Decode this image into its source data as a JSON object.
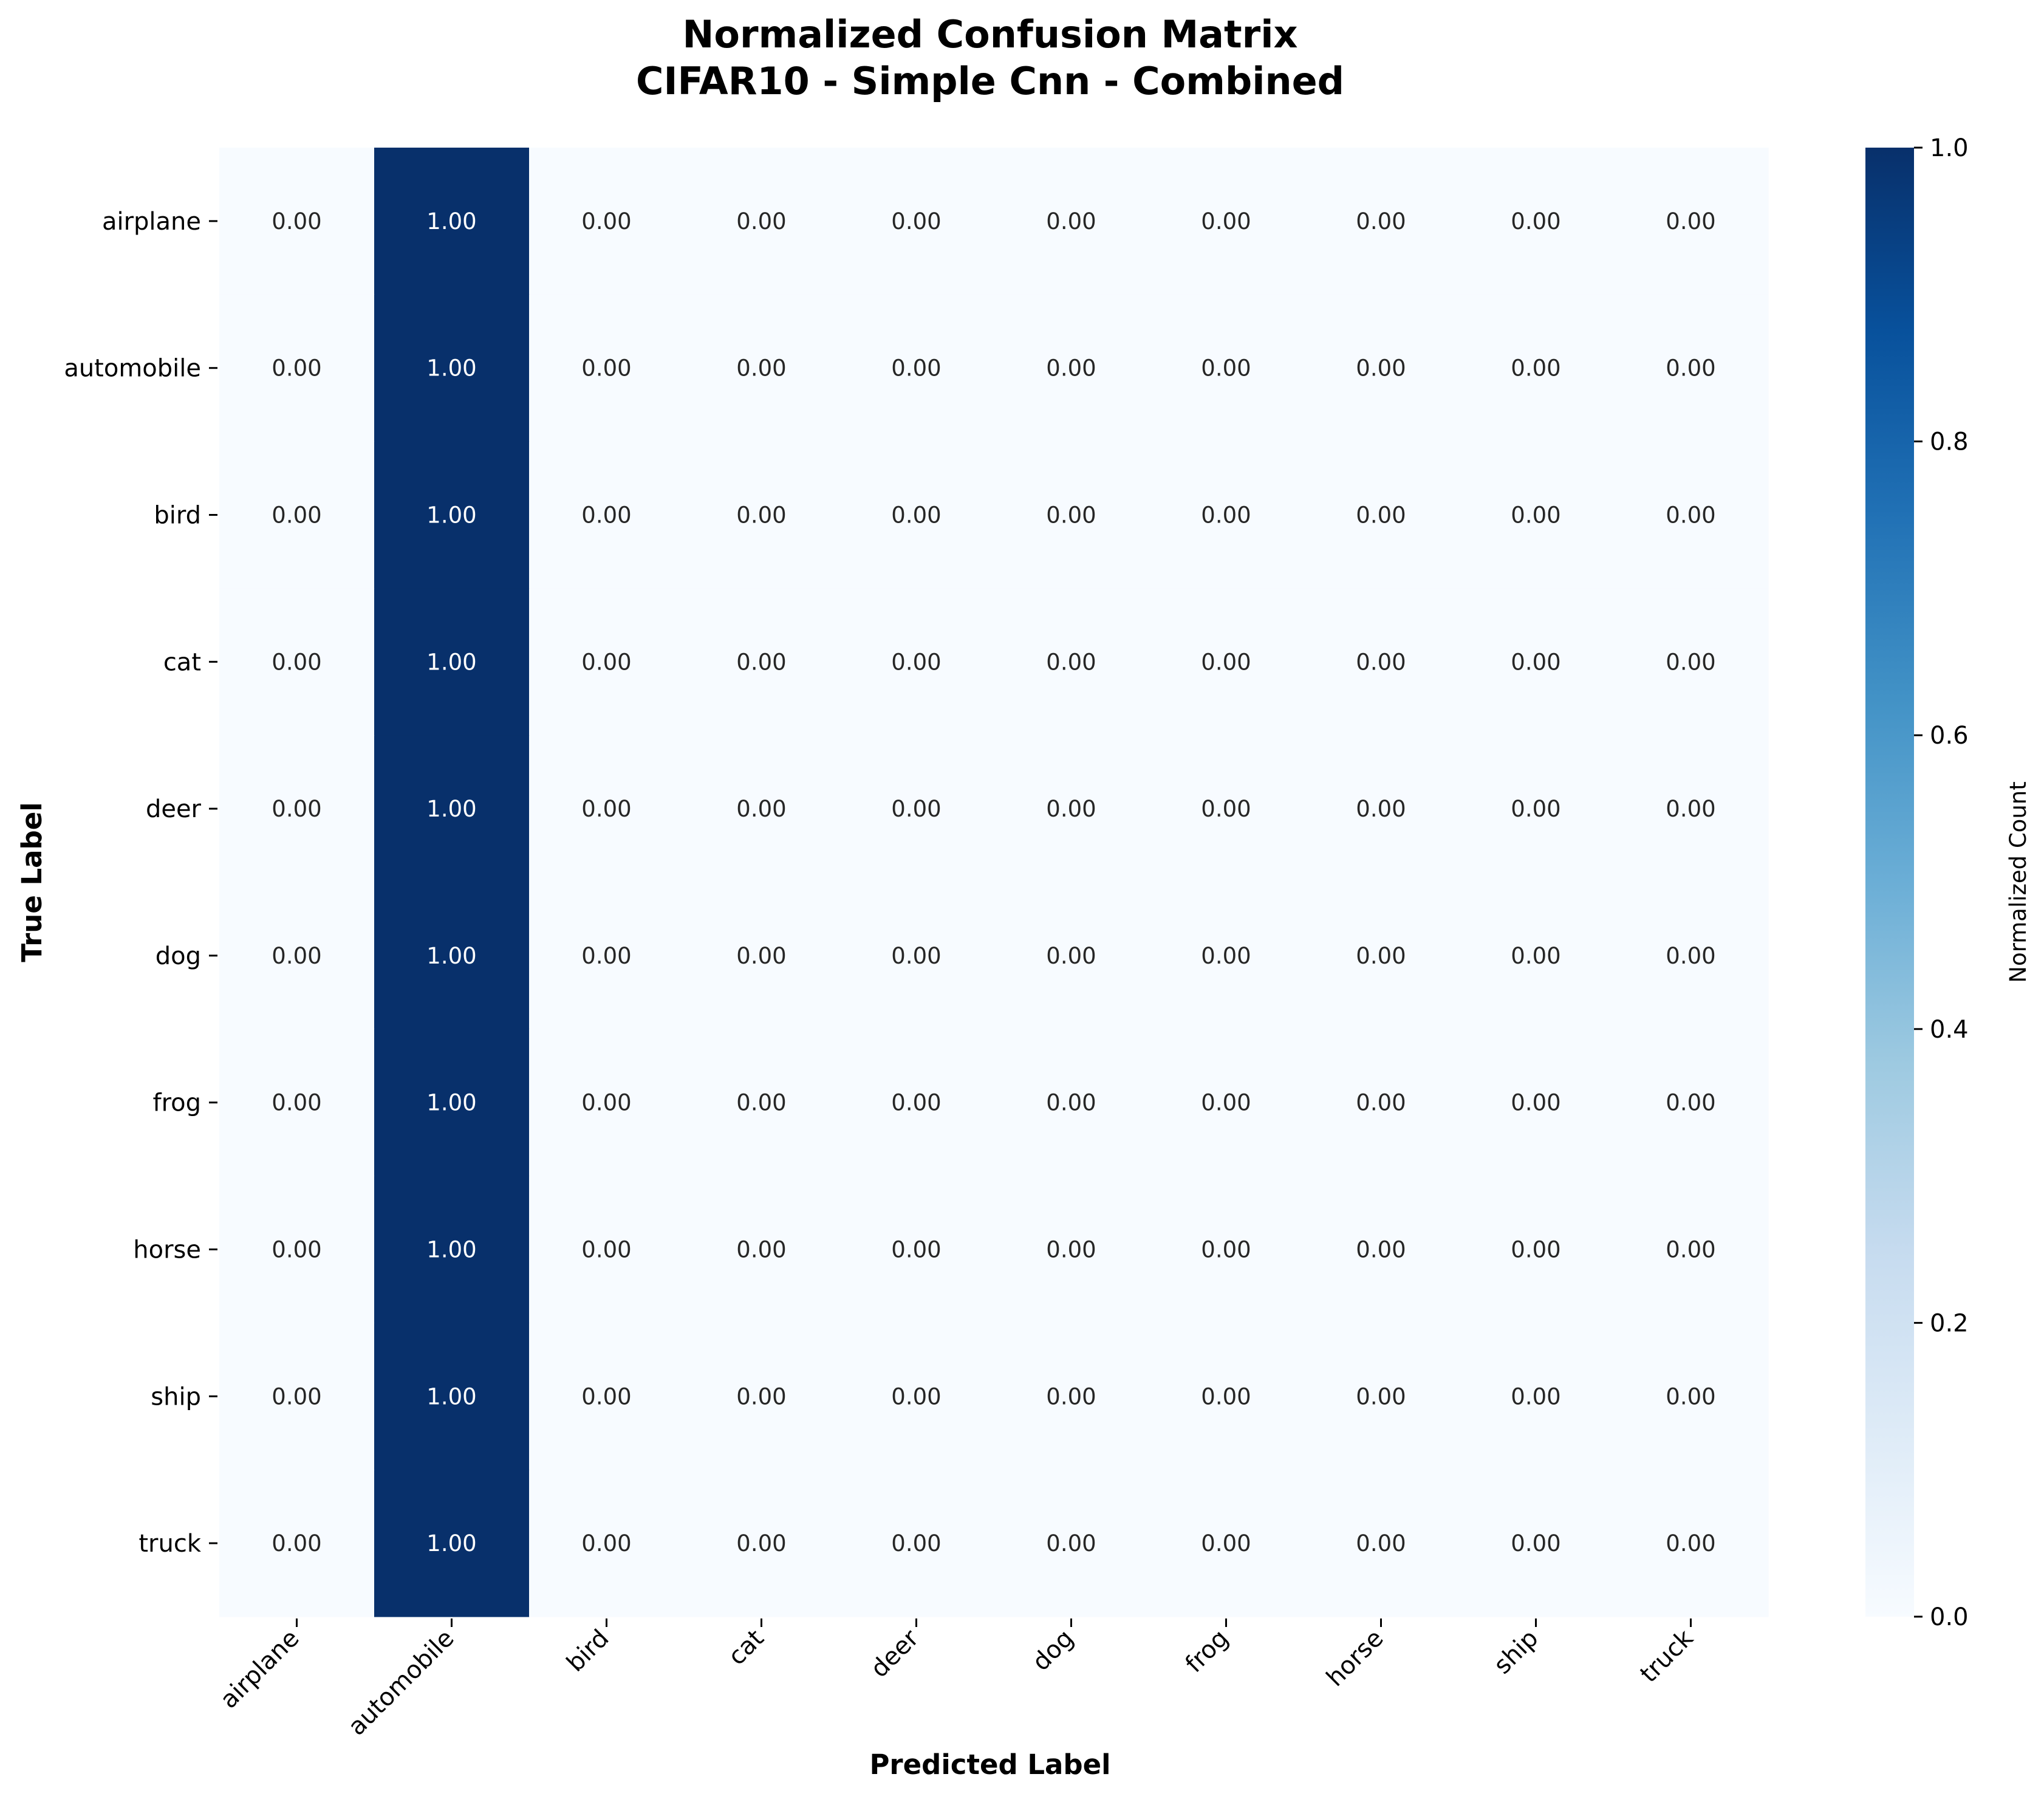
{
  "chart_data": {
    "type": "heatmap",
    "title_lines": [
      "Normalized Confusion Matrix",
      "CIFAR10 - Simple Cnn - Combined"
    ],
    "xlabel": "Predicted Label",
    "ylabel": "True Label",
    "x_categories": [
      "airplane",
      "automobile",
      "bird",
      "cat",
      "deer",
      "dog",
      "frog",
      "horse",
      "ship",
      "truck"
    ],
    "y_categories": [
      "airplane",
      "automobile",
      "bird",
      "cat",
      "deer",
      "dog",
      "frog",
      "horse",
      "ship",
      "truck"
    ],
    "values": [
      [
        0,
        1,
        0,
        0,
        0,
        0,
        0,
        0,
        0,
        0
      ],
      [
        0,
        1,
        0,
        0,
        0,
        0,
        0,
        0,
        0,
        0
      ],
      [
        0,
        1,
        0,
        0,
        0,
        0,
        0,
        0,
        0,
        0
      ],
      [
        0,
        1,
        0,
        0,
        0,
        0,
        0,
        0,
        0,
        0
      ],
      [
        0,
        1,
        0,
        0,
        0,
        0,
        0,
        0,
        0,
        0
      ],
      [
        0,
        1,
        0,
        0,
        0,
        0,
        0,
        0,
        0,
        0
      ],
      [
        0,
        1,
        0,
        0,
        0,
        0,
        0,
        0,
        0,
        0
      ],
      [
        0,
        1,
        0,
        0,
        0,
        0,
        0,
        0,
        0,
        0
      ],
      [
        0,
        1,
        0,
        0,
        0,
        0,
        0,
        0,
        0,
        0
      ],
      [
        0,
        1,
        0,
        0,
        0,
        0,
        0,
        0,
        0,
        0
      ]
    ],
    "value_format_decimals": 2,
    "colormap": "Blues",
    "color_min": "#f7fbff",
    "color_max": "#08306b",
    "colorbar": {
      "label": "Normalized Count",
      "range": [
        0,
        1
      ],
      "ticks": [
        "0.0",
        "0.2",
        "0.4",
        "0.6",
        "0.8",
        "1.0"
      ]
    }
  }
}
